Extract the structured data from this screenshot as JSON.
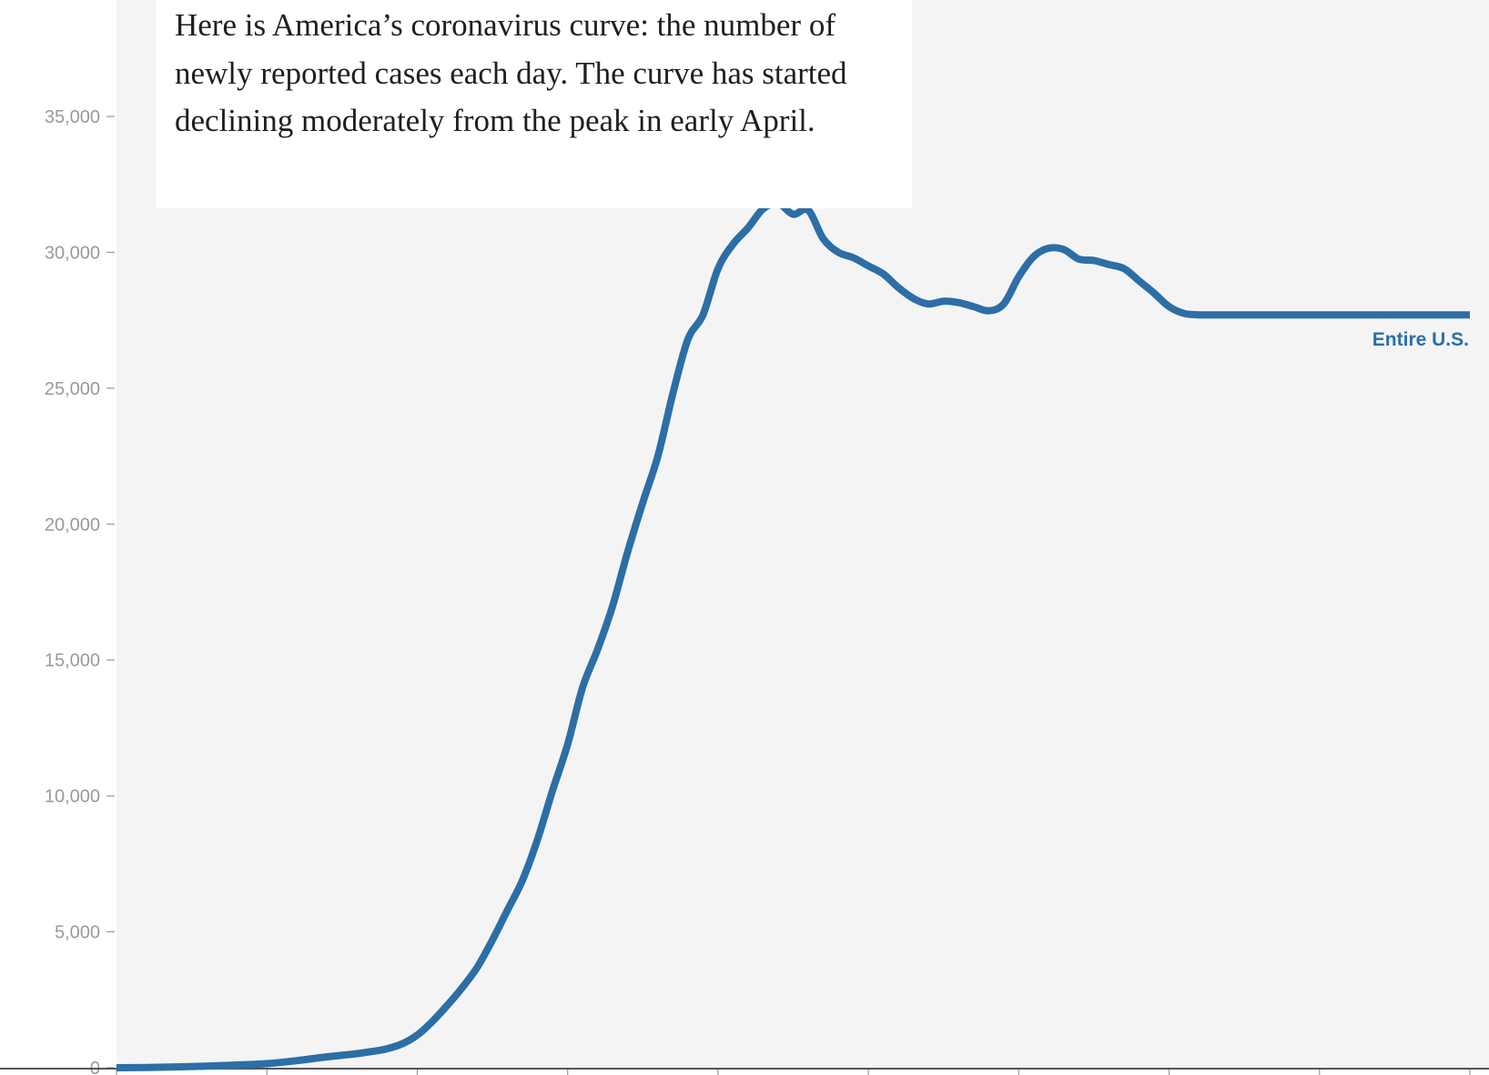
{
  "annotation": {
    "text": "Here is America’s coronavirus curve: the number of newly reported cases each day. The curve has started declining moderately from the peak in early April."
  },
  "colors": {
    "line": "#2c6ea6",
    "plot_background": "#f4f4f4",
    "tick_text": "#9a9a9a",
    "axis": "#999999"
  },
  "chart_data": {
    "type": "line",
    "title": "",
    "xlabel": "",
    "ylabel": "",
    "ylim": [
      0,
      35000
    ],
    "ytick_values": [
      0,
      5000,
      10000,
      15000,
      20000,
      25000,
      30000,
      35000
    ],
    "ytick_labels": [
      "0",
      "5,000",
      "10,000",
      "15,000",
      "20,000",
      "25,000",
      "30,000",
      "35,000"
    ],
    "xtick_count": 10,
    "x_unit": "day",
    "grid": false,
    "series": [
      {
        "name": "Entire U.S.",
        "x": [
          0,
          4,
          8,
          12,
          16,
          20,
          24,
          28,
          32,
          34,
          36,
          38,
          40,
          42,
          44,
          46,
          48,
          50,
          52,
          54,
          56,
          58,
          60,
          62,
          64,
          66,
          68,
          70,
          72,
          74,
          76,
          78,
          80,
          82,
          84,
          86,
          88,
          90,
          92,
          94,
          96,
          98,
          100,
          102,
          104,
          106,
          108,
          110,
          112,
          114,
          116,
          118,
          120,
          122,
          124,
          126,
          128,
          130,
          132,
          134,
          136,
          138,
          140,
          142,
          144,
          146,
          148,
          150,
          152,
          154,
          156,
          158,
          160,
          162,
          164,
          166,
          168,
          170,
          172,
          174,
          176,
          178,
          180
        ],
        "y": [
          0,
          10,
          30,
          60,
          100,
          150,
          260,
          400,
          520,
          600,
          700,
          880,
          1200,
          1700,
          2300,
          2950,
          3700,
          4700,
          5800,
          6900,
          8400,
          10200,
          11900,
          14000,
          15400,
          17000,
          19000,
          20800,
          22500,
          24800,
          26800,
          27700,
          29400,
          30300,
          30900,
          31600,
          31800,
          31400,
          31550,
          30500,
          30000,
          29800,
          29500,
          29200,
          28700,
          28300,
          28100,
          28200,
          28150,
          28000,
          27850,
          28100,
          29100,
          29850,
          30150,
          30100,
          29750,
          29700,
          29550,
          29400,
          28950,
          28500,
          28000,
          27750,
          27700,
          27700,
          27700,
          27700,
          27700,
          27700,
          27700,
          27700,
          27700,
          27700,
          27700,
          27700,
          27700,
          27700,
          27700,
          27700,
          27700,
          27700,
          27700
        ]
      }
    ]
  }
}
